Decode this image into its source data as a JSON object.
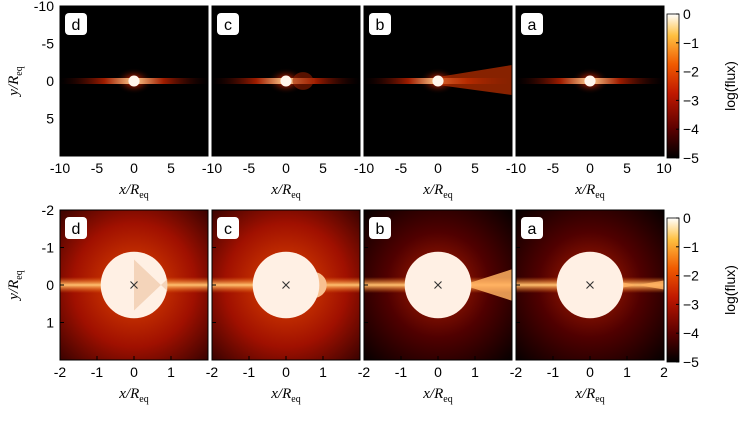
{
  "chart_data": [
    {
      "type": "heatmap",
      "row": "top",
      "panels": [
        "d",
        "c",
        "b",
        "a"
      ],
      "xlabel": "x/R",
      "xlabel_sub": "eq",
      "ylabel": "y/R",
      "ylabel_sub": "eq",
      "xlim": [
        -10,
        10
      ],
      "ylim": [
        10,
        -10
      ],
      "x_ticks": [
        "-10",
        "-5",
        "0",
        "5",
        "-10",
        "-5",
        "0",
        "5",
        "-10",
        "-5",
        "0",
        "5",
        "-10",
        "-5",
        "0",
        "5",
        "10"
      ],
      "y_ticks": [
        "-10",
        "-5",
        "0",
        "5"
      ],
      "colorbar": {
        "label": "log(flux)",
        "ticks": [
          "0",
          "−1",
          "−2",
          "−3",
          "−4",
          "−5"
        ],
        "range": [
          -5,
          0
        ]
      }
    },
    {
      "type": "heatmap",
      "row": "bottom",
      "panels": [
        "d",
        "c",
        "b",
        "a"
      ],
      "xlabel": "x/R",
      "xlabel_sub": "eq",
      "ylabel": "y/R",
      "ylabel_sub": "eq",
      "xlim": [
        -2,
        2
      ],
      "ylim": [
        2,
        -2
      ],
      "x_ticks": [
        "-2",
        "-1",
        "0",
        "1",
        "-2",
        "-1",
        "0",
        "1",
        "-2",
        "-1",
        "0",
        "1",
        "-2",
        "-1",
        "0",
        "1",
        "2"
      ],
      "y_ticks": [
        "-2",
        "-1",
        "0",
        "1"
      ],
      "center_marker": "x",
      "colorbar": {
        "label": "log(flux)",
        "ticks": [
          "0",
          "−1",
          "−2",
          "−3",
          "−4",
          "−5"
        ],
        "range": [
          -5,
          0
        ]
      }
    }
  ]
}
